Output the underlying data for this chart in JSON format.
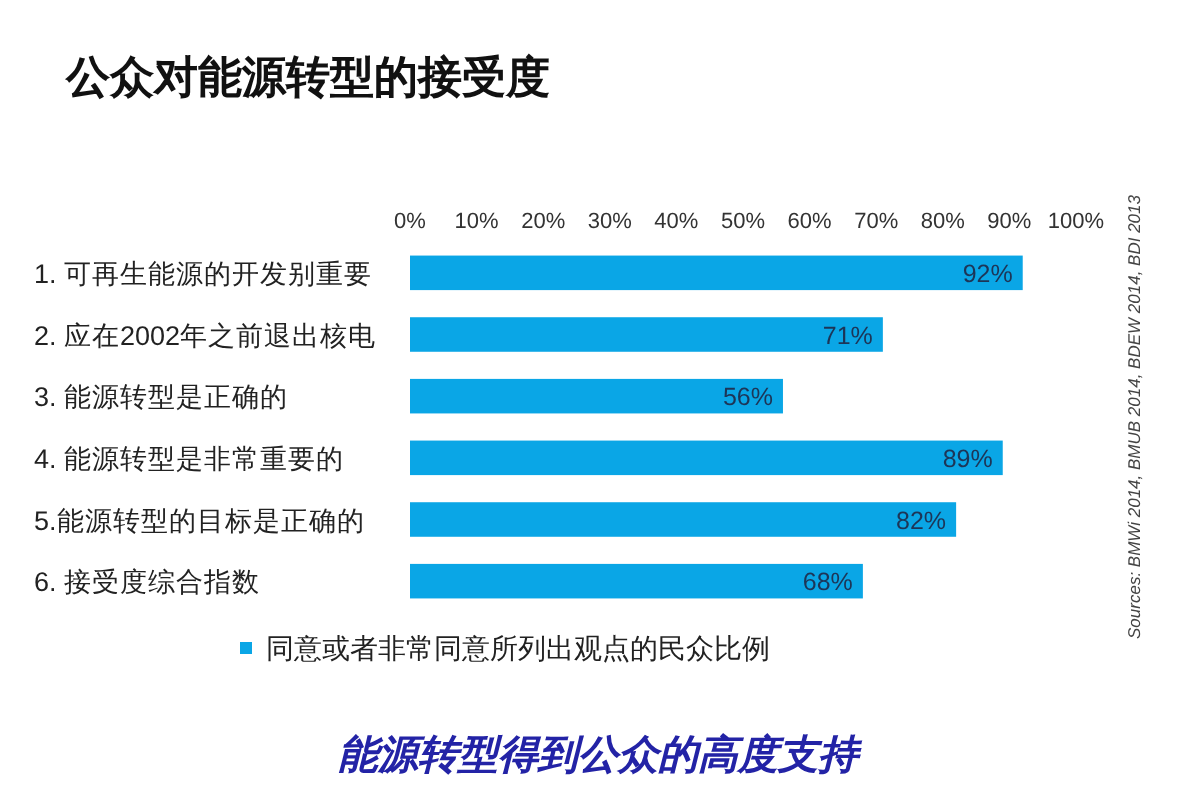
{
  "chart_data": {
    "type": "bar",
    "orientation": "horizontal",
    "title": "公众对能源转型的接受度",
    "categories": [
      "1. 可再生能源的开发别重要",
      "2. 应在2002年之前退出核电",
      "3. 能源转型是正确的",
      "4. 能源转型是非常重要的",
      "5.能源转型的目标是正确的",
      "6. 接受度综合指数"
    ],
    "series": [
      {
        "name": "同意或者非常同意所列出观点的民众比例",
        "color": "#0aa6e6",
        "values": [
          92,
          71,
          56,
          89,
          82,
          68
        ],
        "value_labels": [
          "92%",
          "71%",
          "56%",
          "89%",
          "82%",
          "68%"
        ]
      }
    ],
    "xlim": [
      0,
      100
    ],
    "xticks": [
      {
        "value": 0,
        "label": "0%"
      },
      {
        "value": 10,
        "label": "10%"
      },
      {
        "value": 20,
        "label": "20%"
      },
      {
        "value": 30,
        "label": "30%"
      },
      {
        "value": 40,
        "label": "40%"
      },
      {
        "value": 50,
        "label": "50%"
      },
      {
        "value": 60,
        "label": "60%"
      },
      {
        "value": 70,
        "label": "70%"
      },
      {
        "value": 80,
        "label": "80%"
      },
      {
        "value": 90,
        "label": "90%"
      },
      {
        "value": 100,
        "label": "100%"
      }
    ],
    "legend": "bottom",
    "annotations": [
      "能源转型得到公众的高度支持",
      "Sources: BMWi 2014, BMUB 2014, BDEW 2014, BDI 2013"
    ]
  }
}
